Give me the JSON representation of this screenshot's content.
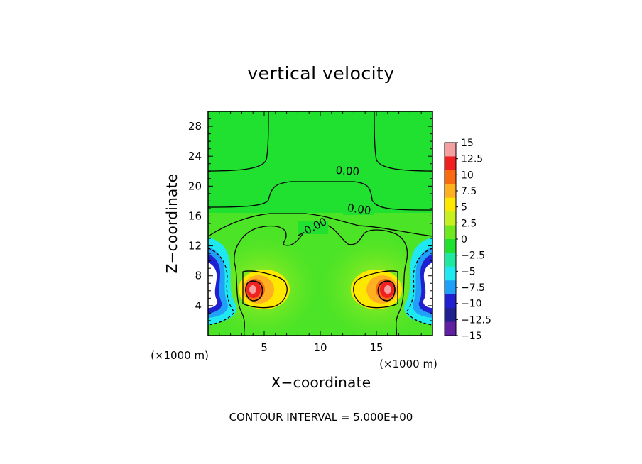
{
  "chart_data": {
    "type": "heatmap",
    "title": "vertical velocity",
    "xlabel": "X−coordinate",
    "ylabel": "Z−coordinate",
    "x_unit": "(×1000 m)",
    "x_unit_right": "(×1000 m)",
    "xlim": [
      0,
      20
    ],
    "ylim": [
      0,
      30
    ],
    "x_ticks": [
      "5",
      "10",
      "15"
    ],
    "y_ticks": [
      "4",
      "8",
      "12",
      "16",
      "20",
      "24",
      "28"
    ],
    "colorbar": {
      "labels": [
        "15",
        "12.5",
        "10",
        "7.5",
        "5",
        "2.5",
        "0",
        "−2.5",
        "−5",
        "−7.5",
        "−10",
        "−12.5",
        "−15"
      ],
      "colors": [
        "#f4a0a0",
        "#f02020",
        "#fa6a10",
        "#ffb020",
        "#ffe800",
        "#c8f020",
        "#70e820",
        "#20e030",
        "#20e8a0",
        "#20e8f0",
        "#20a0f8",
        "#2020d0",
        "#202090",
        "#6020a0"
      ]
    },
    "contour_labels": [
      "0.00",
      "0.00",
      "−0.00"
    ],
    "features": [
      {
        "name": "updraft-left",
        "x": 4.0,
        "z": 6.0,
        "peak": 12.5
      },
      {
        "name": "updraft-right",
        "x": 16.0,
        "z": 6.0,
        "peak": 12.5
      },
      {
        "name": "downdraft-left",
        "x": 1.0,
        "z": 6.5,
        "min": -15
      },
      {
        "name": "downdraft-right",
        "x": 19.0,
        "z": 6.5,
        "min": -15
      }
    ]
  },
  "footer": {
    "contour_interval": "CONTOUR INTERVAL = 5.000E+00"
  }
}
